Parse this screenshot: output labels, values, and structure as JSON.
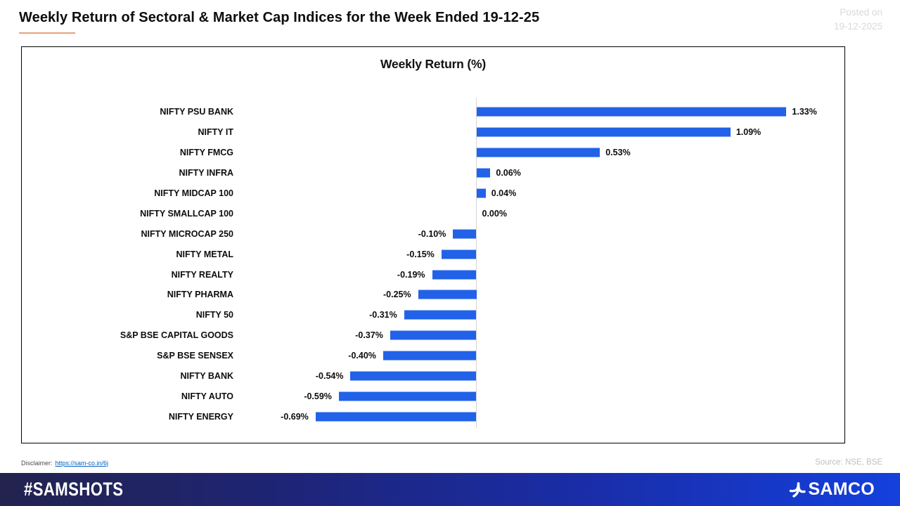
{
  "header": {
    "title": "Weekly Return of Sectoral & Market Cap Indices for the Week Ended 19-12-25",
    "posted_label": "Posted on",
    "posted_date": "19-12-2025"
  },
  "chart_data": {
    "type": "bar",
    "orientation": "horizontal",
    "title": "Weekly Return (%)",
    "categories": [
      "NIFTY PSU BANK",
      "NIFTY IT",
      "NIFTY FMCG",
      "NIFTY INFRA",
      "NIFTY MIDCAP 100",
      "NIFTY SMALLCAP 100",
      "NIFTY MICROCAP 250",
      "NIFTY METAL",
      "NIFTY REALTY",
      "NIFTY PHARMA",
      "NIFTY 50",
      "S&P BSE CAPITAL GOODS",
      "S&P BSE SENSEX",
      "NIFTY BANK",
      "NIFTY AUTO",
      "NIFTY ENERGY"
    ],
    "values": [
      1.33,
      1.09,
      0.53,
      0.06,
      0.04,
      0.0,
      -0.1,
      -0.15,
      -0.19,
      -0.25,
      -0.31,
      -0.37,
      -0.4,
      -0.54,
      -0.59,
      -0.69
    ],
    "data_labels": [
      "1.33%",
      "1.09%",
      "0.53%",
      "0.06%",
      "0.04%",
      "0.00%",
      "-0.10%",
      "-0.15%",
      "-0.19%",
      "-0.25%",
      "-0.31%",
      "-0.37%",
      "-0.40%",
      "-0.54%",
      "-0.59%",
      "-0.69%"
    ],
    "xlim": [
      -0.95,
      1.6
    ],
    "bar_color": "#2262e9",
    "grid": false,
    "legend": false
  },
  "footer": {
    "disclaimer_label": "Disclaimer:",
    "disclaimer_link": "https://sam-co.in/6j",
    "source": "Source: NSE, BSE",
    "hashtag": "#SAMSHOTS",
    "brand": "SAMCO"
  },
  "colors": {
    "bar_blue": "#2262e9",
    "title_underline": "#e7a178",
    "posted_gray": "#d9d9d9",
    "source_gray": "#bfbfbf",
    "link_blue": "#0563c1",
    "footer_gradient_start": "#23234e",
    "footer_gradient_end": "#1440dd"
  }
}
